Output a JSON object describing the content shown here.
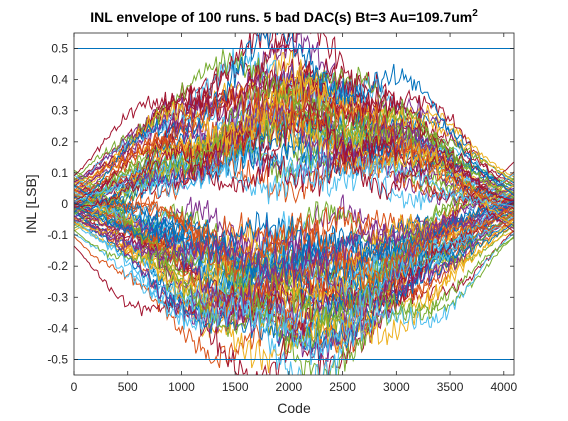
{
  "chart_data": {
    "type": "line",
    "title": "INL envelope of 100 runs. 5 bad DAC(s) Bt=3 Au=109.7um",
    "title_superscript": "2",
    "xlabel": "Code",
    "ylabel": "INL [LSB]",
    "xlim": [
      0,
      4095
    ],
    "ylim": [
      -0.55,
      0.55
    ],
    "x_ticks": [
      0,
      500,
      1000,
      1500,
      2000,
      2500,
      3000,
      3500,
      4000
    ],
    "y_ticks": [
      -0.5,
      -0.4,
      -0.3,
      -0.2,
      -0.1,
      0,
      0.1,
      0.2,
      0.3,
      0.4,
      0.5
    ],
    "grid": false,
    "runs": 100,
    "reference_lines": [
      {
        "y": 0.5,
        "color": "#0072BD"
      },
      {
        "y": -0.5,
        "color": "#0072BD"
      }
    ],
    "series_colors": [
      "#0072BD",
      "#D95319",
      "#EDB120",
      "#7E2F8E",
      "#77AC30",
      "#4DBEEE",
      "#A2142F"
    ]
  }
}
